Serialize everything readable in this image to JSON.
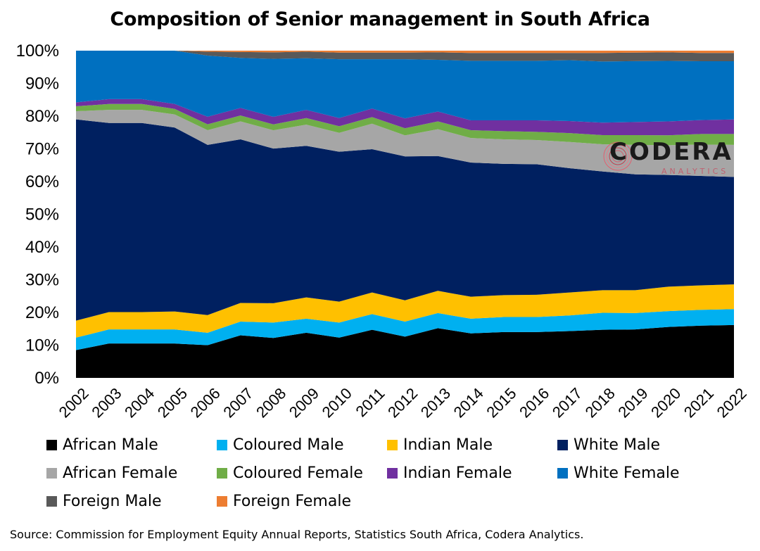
{
  "title": "Composition of Senior management in South Africa",
  "source": "Source: Commission for Employment Equity Annual Reports, Statistics South Africa, Codera Analytics.",
  "logo": {
    "word": "CODERA",
    "sub": "ANALYTICS",
    "icon": "codera-circle-logo"
  },
  "chart_data": {
    "type": "area",
    "stacked": true,
    "title": "Composition of Senior management in South Africa",
    "ylim": [
      0,
      100
    ],
    "y_ticks": [
      "0%",
      "10%",
      "20%",
      "30%",
      "40%",
      "50%",
      "60%",
      "70%",
      "80%",
      "90%",
      "100%"
    ],
    "x": [
      "2002",
      "2003",
      "2004",
      "2005",
      "2006",
      "2007",
      "2008",
      "2009",
      "2010",
      "2011",
      "2012",
      "2013",
      "2014",
      "2015",
      "2016",
      "2017",
      "2018",
      "2019",
      "2020",
      "2021",
      "2022"
    ],
    "legend_position": "bottom",
    "series": [
      {
        "name": "African Male",
        "color": "#000000",
        "values": [
          8.5,
          10.5,
          10.5,
          10.5,
          10,
          13,
          12.2,
          13.8,
          12.3,
          14.7,
          12.6,
          15.2,
          13.6,
          14,
          14,
          14.3,
          14.7,
          14.8,
          15.4,
          15.8,
          16
        ]
      },
      {
        "name": "Coloured Male",
        "color": "#00b0f0",
        "values": [
          3.8,
          4.3,
          4.3,
          4.3,
          3.8,
          4.2,
          4.7,
          4.3,
          4.6,
          4.8,
          4.6,
          4.6,
          4.5,
          4.6,
          4.6,
          4.8,
          5.2,
          5,
          4.8,
          4.8,
          4.8
        ]
      },
      {
        "name": "Indian Male",
        "color": "#ffc000",
        "values": [
          5.2,
          5.3,
          5.3,
          5.5,
          5.4,
          5.7,
          5.9,
          6.5,
          6.4,
          6.6,
          6.5,
          6.8,
          6.7,
          6.7,
          6.8,
          7,
          6.9,
          7,
          7.4,
          7.4,
          7.5
        ]
      },
      {
        "name": "White Male",
        "color": "#002060",
        "values": [
          61.5,
          57.8,
          57.8,
          56.2,
          52,
          50,
          47.2,
          46.3,
          45.8,
          43.8,
          44,
          41.2,
          41,
          40.1,
          39.9,
          38,
          36.3,
          35.4,
          33.8,
          33.1,
          32.5
        ]
      },
      {
        "name": "African Female",
        "color": "#a6a6a6",
        "values": [
          2.5,
          4,
          4,
          4,
          4.5,
          5.5,
          5.6,
          6.5,
          5.8,
          7.8,
          6.4,
          8.2,
          7.5,
          7.5,
          7.4,
          8,
          8.3,
          9,
          9,
          9.5,
          9.7
        ]
      },
      {
        "name": "Coloured Female",
        "color": "#70ad47",
        "values": [
          1.5,
          1.8,
          1.8,
          1.7,
          1.8,
          1.8,
          1.8,
          2,
          2,
          2,
          2.2,
          2.4,
          2.4,
          2.5,
          2.5,
          2.7,
          2.8,
          3,
          3,
          3.2,
          3.3
        ]
      },
      {
        "name": "Indian Female",
        "color": "#7030a0",
        "values": [
          1.2,
          1.5,
          1.5,
          1.5,
          2.3,
          2.3,
          2.3,
          2.5,
          2.5,
          2.6,
          3,
          3,
          3,
          3.3,
          3.5,
          3.7,
          3.8,
          4,
          4.2,
          4.2,
          4.4
        ]
      },
      {
        "name": "White Female",
        "color": "#0070c0",
        "values": [
          15.8,
          14.8,
          14.8,
          16.3,
          18.7,
          15.3,
          17.7,
          15.8,
          18,
          15.1,
          18.1,
          15.8,
          18.2,
          18.2,
          18.2,
          18.6,
          18.7,
          18.6,
          18.3,
          17.8,
          17.6
        ]
      },
      {
        "name": "Foreign Male",
        "color": "#595959",
        "values": [
          0,
          0,
          0,
          0,
          1.2,
          1.8,
          2,
          2,
          2,
          2,
          2,
          2.3,
          2.4,
          2.4,
          2.4,
          2.2,
          2.6,
          2.6,
          2.6,
          2.5,
          2.5
        ]
      },
      {
        "name": "Foreign Female",
        "color": "#ed7d31",
        "values": [
          0,
          0,
          0,
          0,
          0.3,
          0.4,
          0.5,
          0.3,
          0.6,
          0.6,
          0.6,
          0.5,
          0.7,
          0.7,
          0.7,
          0.7,
          0.7,
          0.6,
          0.5,
          0.7,
          0.7
        ]
      }
    ]
  }
}
